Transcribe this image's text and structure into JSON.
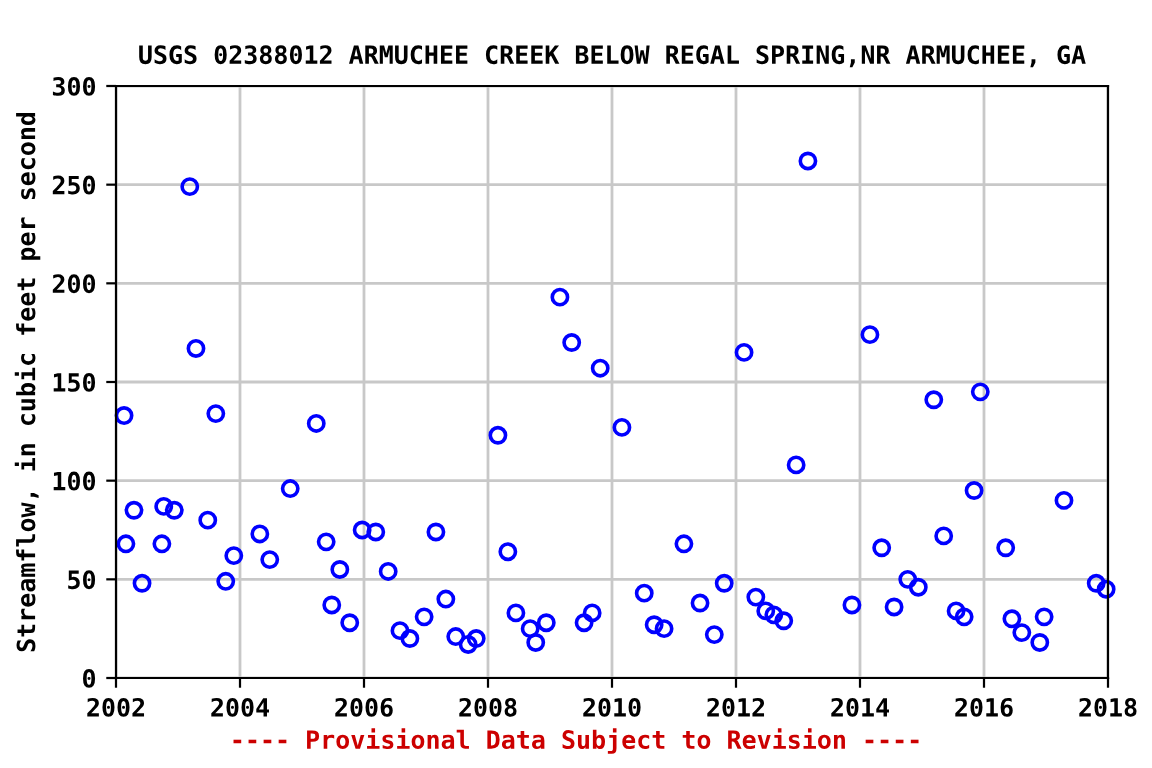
{
  "chart_data": {
    "type": "scatter",
    "title": "USGS 02388012 ARMUCHEE CREEK BELOW REGAL SPRING,NR ARMUCHEE, GA",
    "ylabel": "Streamflow, in cubic feet per second",
    "annotations": [
      "---- Provisional Data Subject to Revision ----"
    ],
    "x": [
      2002.13,
      2002.16,
      2002.29,
      2002.42,
      2002.74,
      2002.77,
      2002.94,
      2003.19,
      2003.29,
      2003.48,
      2003.61,
      2003.77,
      2003.9,
      2004.32,
      2004.48,
      2004.81,
      2005.23,
      2005.39,
      2005.48,
      2005.61,
      2005.77,
      2005.97,
      2006.19,
      2006.39,
      2006.58,
      2006.74,
      2006.97,
      2007.16,
      2007.32,
      2007.48,
      2007.68,
      2007.81,
      2008.16,
      2008.32,
      2008.45,
      2008.68,
      2008.77,
      2008.94,
      2009.16,
      2009.35,
      2009.55,
      2009.68,
      2009.81,
      2010.16,
      2010.52,
      2010.68,
      2010.84,
      2011.16,
      2011.42,
      2011.65,
      2011.81,
      2012.13,
      2012.32,
      2012.48,
      2012.61,
      2012.77,
      2012.97,
      2013.16,
      2013.87,
      2014.16,
      2014.35,
      2014.55,
      2014.77,
      2014.94,
      2015.19,
      2015.35,
      2015.55,
      2015.68,
      2015.84,
      2015.94,
      2016.35,
      2016.45,
      2016.61,
      2016.9,
      2016.97,
      2017.29,
      2017.81,
      2017.97
    ],
    "values": [
      133,
      68,
      85,
      48,
      68,
      87,
      85,
      249,
      167,
      80,
      134,
      49,
      62,
      73,
      60,
      96,
      129,
      69,
      37,
      55,
      28,
      75,
      74,
      54,
      24,
      20,
      31,
      74,
      40,
      21,
      17,
      20,
      123,
      64,
      33,
      25,
      18,
      28,
      193,
      170,
      28,
      33,
      157,
      127,
      43,
      27,
      25,
      68,
      38,
      22,
      48,
      165,
      41,
      34,
      32,
      29,
      108,
      262,
      37,
      174,
      66,
      36,
      50,
      46,
      141,
      72,
      34,
      31,
      95,
      145,
      66,
      30,
      23,
      18,
      31,
      90,
      48,
      45
    ],
    "color": "#0000ff",
    "marker": "circle",
    "grid": true,
    "xlim": [
      2002,
      2018
    ],
    "xticks": [
      2002,
      2004,
      2006,
      2008,
      2010,
      2012,
      2014,
      2016,
      2018
    ],
    "ylim": [
      0,
      300
    ],
    "yticks": [
      0,
      50,
      100,
      150,
      200,
      250,
      300
    ]
  }
}
